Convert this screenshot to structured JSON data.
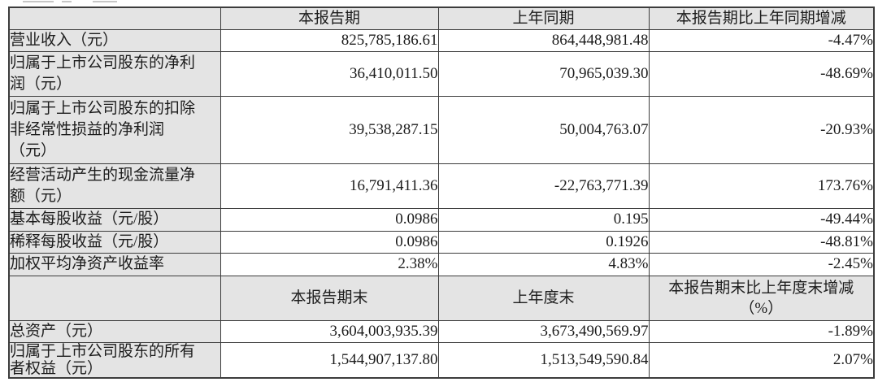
{
  "table": {
    "colors": {
      "header_bg": "#e4e4e4",
      "label_bg": "#e4e4e4",
      "cell_bg": "#ffffff",
      "border": "#3c3c3c",
      "text": "#1c1c1c"
    },
    "sections": [
      {
        "header": [
          "",
          "本报告期",
          "上年同期",
          "本报告期比上年同期增减"
        ],
        "rows": [
          {
            "label": "营业收入（元）",
            "values": [
              "825,785,186.61",
              "864,448,981.48",
              "-4.47%"
            ]
          },
          {
            "label": "归属于上市公司股东的净利\n润（元）",
            "values": [
              "36,410,011.50",
              "70,965,039.30",
              "-48.69%"
            ]
          },
          {
            "label": "归属于上市公司股东的扣除\n非经常性损益的净利润\n（元）",
            "values": [
              "39,538,287.15",
              "50,004,763.07",
              "-20.93%"
            ]
          },
          {
            "label": "经营活动产生的现金流量净\n额（元）",
            "values": [
              "16,791,411.36",
              "-22,763,771.39",
              "173.76%"
            ]
          },
          {
            "label": "基本每股收益（元/股）",
            "values": [
              "0.0986",
              "0.195",
              "-49.44%"
            ]
          },
          {
            "label": "稀释每股收益（元/股）",
            "values": [
              "0.0986",
              "0.1926",
              "-48.81%"
            ]
          },
          {
            "label": "加权平均净资产收益率",
            "values": [
              "2.38%",
              "4.83%",
              "-2.45%"
            ]
          }
        ]
      },
      {
        "header": [
          "",
          "本报告期末",
          "上年度末",
          "本报告期末比上年度末增减\n（%）"
        ],
        "rows": [
          {
            "label": "总资产（元）",
            "values": [
              "3,604,003,935.39",
              "3,673,490,569.97",
              "-1.89%"
            ]
          },
          {
            "label": "归属于上市公司股东的所有\n者权益（元）",
            "values": [
              "1,544,907,137.80",
              "1,513,549,590.84",
              "2.07%"
            ]
          }
        ]
      }
    ]
  }
}
